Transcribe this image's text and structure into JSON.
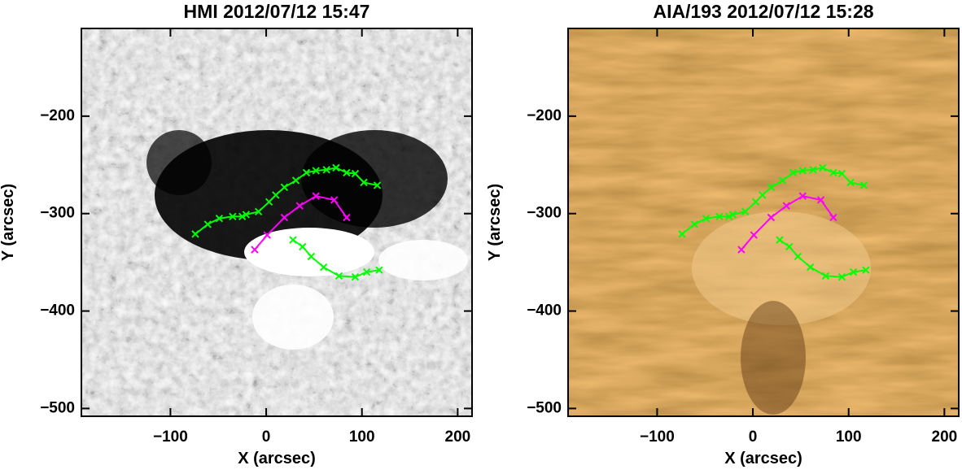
{
  "chart_data": [
    {
      "type": "line",
      "title": "HMI 2012/07/12 15:47",
      "background": "hmi",
      "x_label": "X (arcsec)",
      "y_label": "Y (arcsec)",
      "xlim": [
        -193,
        215
      ],
      "ylim": [
        -508,
        -110
      ],
      "xticks": [
        {
          "value": -100,
          "label": "−100"
        },
        0,
        100,
        200
      ],
      "yticks": [
        {
          "value": -200,
          "label": "−200"
        },
        {
          "value": -300,
          "label": "−300"
        },
        {
          "value": -400,
          "label": "−400"
        },
        {
          "value": -500,
          "label": "−500"
        }
      ],
      "series": [
        {
          "color": "#00ff00",
          "x": [
            -74,
            -61,
            -49,
            -35,
            -25,
            -21,
            -8,
            3,
            10,
            19,
            31,
            42,
            52,
            63,
            73,
            84,
            93,
            102,
            116
          ],
          "values": [
            -321,
            -311,
            -305,
            -303,
            -303,
            -301,
            -298,
            -288,
            -281,
            -273,
            -266,
            -258,
            -256,
            -255,
            -253,
            -258,
            -259,
            -268,
            -271
          ]
        },
        {
          "color": "#ff00ff",
          "x": [
            -12,
            1,
            19,
            35,
            52,
            71,
            84
          ],
          "values": [
            -337,
            -322,
            -304,
            -292,
            -282,
            -286,
            -304
          ]
        },
        {
          "color": "#00ff00",
          "x": [
            28,
            38,
            47,
            60,
            76,
            93,
            105,
            118
          ],
          "values": [
            -327,
            -334,
            -344,
            -355,
            -364,
            -365,
            -360,
            -358
          ]
        }
      ]
    },
    {
      "type": "line",
      "title": "AIA/193 2012/07/12 15:28",
      "background": "aia",
      "x_label": "X (arcsec)",
      "y_label": "Y (arcsec)",
      "xlim": [
        -193,
        215
      ],
      "ylim": [
        -508,
        -110
      ],
      "xticks": [
        {
          "value": -100,
          "label": "−100"
        },
        0,
        100,
        200
      ],
      "yticks": [
        {
          "value": -200,
          "label": "−200"
        },
        {
          "value": -300,
          "label": "−300"
        },
        {
          "value": -400,
          "label": "−400"
        },
        {
          "value": -500,
          "label": "−500"
        }
      ],
      "series": [
        {
          "color": "#00ff00",
          "x": [
            -74,
            -61,
            -49,
            -35,
            -25,
            -21,
            -8,
            3,
            10,
            19,
            31,
            42,
            52,
            63,
            73,
            84,
            93,
            102,
            116
          ],
          "values": [
            -321,
            -311,
            -305,
            -303,
            -303,
            -301,
            -298,
            -288,
            -281,
            -273,
            -266,
            -258,
            -256,
            -255,
            -253,
            -258,
            -259,
            -268,
            -271
          ]
        },
        {
          "color": "#ff00ff",
          "x": [
            -12,
            1,
            19,
            35,
            52,
            71,
            84
          ],
          "values": [
            -337,
            -322,
            -304,
            -292,
            -282,
            -286,
            -304
          ]
        },
        {
          "color": "#00ff00",
          "x": [
            28,
            38,
            47,
            60,
            76,
            93,
            105,
            118
          ],
          "values": [
            -327,
            -334,
            -344,
            -355,
            -364,
            -365,
            -360,
            -358
          ]
        }
      ]
    }
  ]
}
